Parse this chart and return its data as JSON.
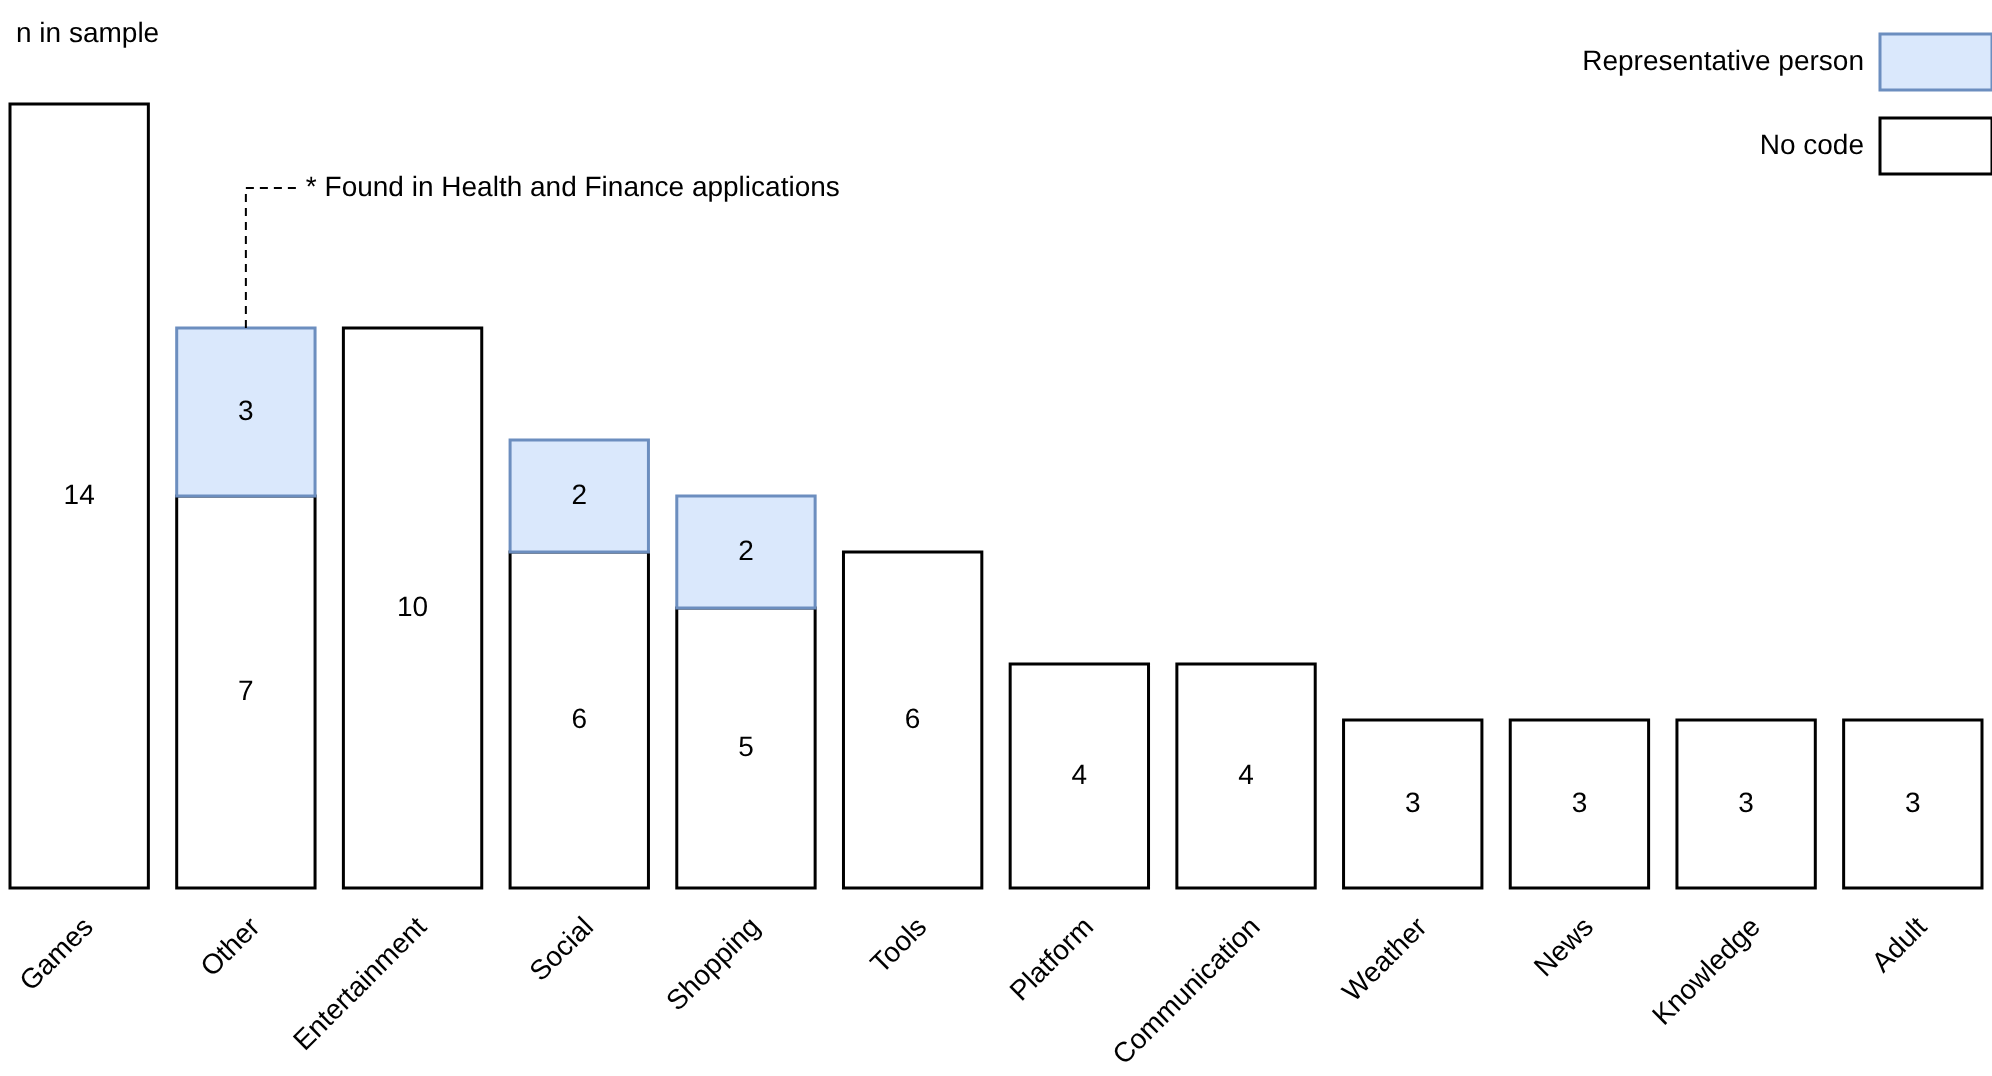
{
  "chart_data": {
    "type": "bar",
    "stacked": true,
    "ylabel": "n in sample",
    "categories": [
      "Games",
      "Other",
      "Entertainment",
      "Social",
      "Shopping",
      "Tools",
      "Platform",
      "Communication",
      "Weather",
      "News",
      "Knowledge",
      "Adult"
    ],
    "series": [
      {
        "name": "No code",
        "color": "#ffffff",
        "values": [
          14,
          7,
          10,
          6,
          5,
          6,
          4,
          4,
          3,
          3,
          3,
          3
        ]
      },
      {
        "name": "Representative person",
        "color": "#dae8fc",
        "values": [
          null,
          3,
          null,
          2,
          2,
          null,
          null,
          null,
          null,
          null,
          null,
          null
        ]
      }
    ],
    "ylim": [
      0,
      14
    ],
    "data_labels": true,
    "legend": "top right",
    "grid": false,
    "annotations": [
      "* Found in Health and Finance applications"
    ]
  }
}
